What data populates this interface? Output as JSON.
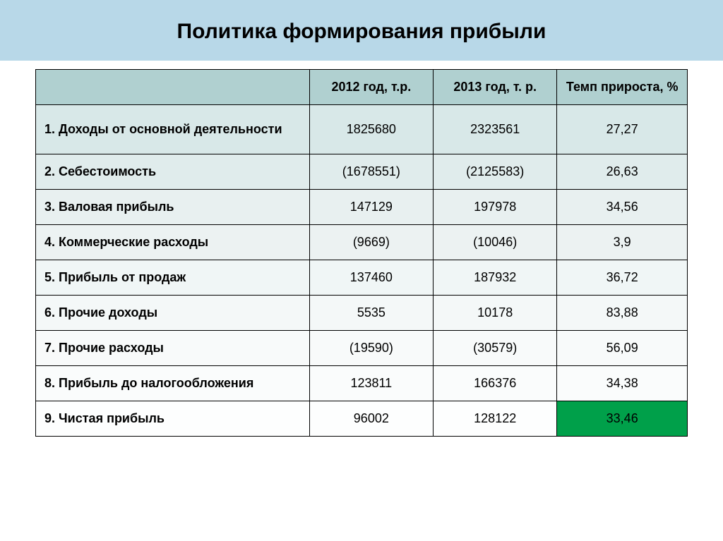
{
  "title": "Политика формирования прибыли",
  "table": {
    "columns": {
      "label": "",
      "y2012": "2012 год, т.р.",
      "y2013": "2013 год, т. р.",
      "growth": "Темп прироста, %"
    },
    "rows": [
      {
        "label": "1. Доходы от основной деятельности",
        "y2012": "1825680",
        "y2013": "2323561",
        "growth": "27,27",
        "highlight": false
      },
      {
        "label": "2. Себестоимость",
        "y2012": "(1678551)",
        "y2013": "(2125583)",
        "growth": "26,63",
        "highlight": false
      },
      {
        "label": "3. Валовая прибыль",
        "y2012": "147129",
        "y2013": "197978",
        "growth": "34,56",
        "highlight": false
      },
      {
        "label": "4. Коммерческие расходы",
        "y2012": "(9669)",
        "y2013": "(10046)",
        "growth": "3,9",
        "highlight": false
      },
      {
        "label": "5. Прибыль от продаж",
        "y2012": "137460",
        "y2013": "187932",
        "growth": "36,72",
        "highlight": false
      },
      {
        "label": "6. Прочие доходы",
        "y2012": "5535",
        "y2013": "10178",
        "growth": "83,88",
        "highlight": false
      },
      {
        "label": "7. Прочие расходы",
        "y2012": "(19590)",
        "y2013": "(30579)",
        "growth": "56,09",
        "highlight": false
      },
      {
        "label": "8. Прибыль до налогообложения",
        "y2012": "123811",
        "y2013": "166376",
        "growth": "34,38",
        "highlight": false
      },
      {
        "label": "9. Чистая прибыль",
        "y2012": "96002",
        "y2013": "128122",
        "growth": "33,46",
        "highlight": true
      }
    ]
  },
  "styling": {
    "header_band_bg": "#b8d8e8",
    "th_bg": "#b0d0d0",
    "highlight_bg": "#00a04a",
    "border_color": "#000000",
    "title_fontsize": 30,
    "cell_fontsize": 18,
    "row_gradient": [
      "#d8e8e8",
      "#e0ecec",
      "#e8f0f0",
      "#ecf2f2",
      "#f0f6f6",
      "#f4f8f8",
      "#f8fafa",
      "#fafcfc",
      "#fdfefe"
    ]
  }
}
